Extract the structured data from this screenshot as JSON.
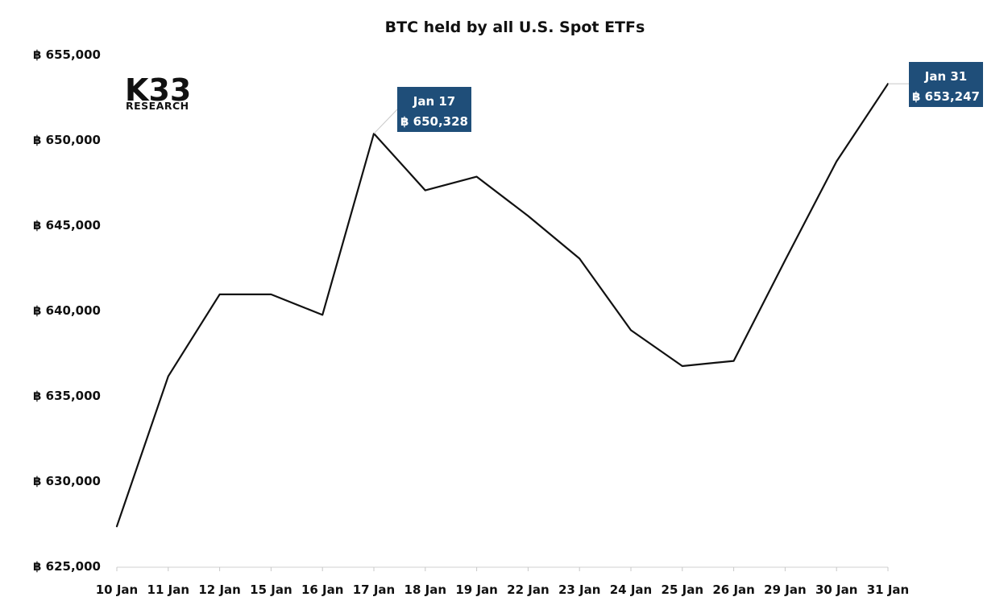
{
  "logo": {
    "main": "K33",
    "sub": "RESEARCH"
  },
  "chart_data": {
    "type": "line",
    "title": "BTC held by all U.S. Spot ETFs",
    "xlabel": "",
    "ylabel": "",
    "categories": [
      "10 Jan",
      "11 Jan",
      "12 Jan",
      "15 Jan",
      "16 Jan",
      "17 Jan",
      "18 Jan",
      "19 Jan",
      "22 Jan",
      "23 Jan",
      "24 Jan",
      "25 Jan",
      "26 Jan",
      "29 Jan",
      "30 Jan",
      "31 Jan"
    ],
    "series": [
      {
        "values": [
          627300,
          636100,
          640900,
          640900,
          639700,
          650328,
          647000,
          647800,
          645500,
          643000,
          638800,
          636700,
          637000,
          642900,
          648700,
          653247
        ]
      }
    ],
    "ylim": [
      625000,
      655000
    ],
    "yticks": [
      625000,
      630000,
      635000,
      640000,
      645000,
      650000,
      655000
    ],
    "ytick_labels": [
      "฿ 625,000",
      "฿ 630,000",
      "฿ 635,000",
      "฿ 640,000",
      "฿ 645,000",
      "฿ 650,000",
      "฿ 655,000"
    ],
    "grid": false,
    "legend": "none",
    "line_color": "#111111",
    "callouts": [
      {
        "index": 5,
        "date": "Jan 17",
        "value": "฿ 650,328",
        "color": "#1f4e79"
      },
      {
        "index": 15,
        "date": "Jan 31",
        "value": "฿ 653,247",
        "color": "#1f4e79"
      }
    ]
  }
}
